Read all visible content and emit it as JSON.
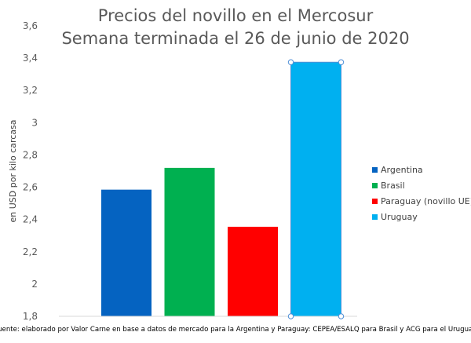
{
  "chart_data": {
    "type": "bar",
    "title": "Precios del novillo en el Mercosur",
    "subtitle": "Semana terminada el 26 de junio de 2020",
    "xlabel": "",
    "ylabel": "en USD por kilo carcasa",
    "ylim": [
      1.8,
      3.6
    ],
    "yticks": [
      1.8,
      2,
      2.2,
      2.4,
      2.6,
      2.8,
      3,
      3.2,
      3.4,
      3.6
    ],
    "ytick_labels": [
      "1,8",
      "2",
      "2,2",
      "2,4",
      "2,6",
      "2,8",
      "3",
      "3,2",
      "3,4",
      "3,6"
    ],
    "grid": false,
    "legend_position": "right",
    "series": [
      {
        "name": "Argentina",
        "value": 2.585,
        "color": "#0563C1"
      },
      {
        "name": "Brasil",
        "value": 2.72,
        "color": "#00B050"
      },
      {
        "name": "Paraguay (novillo UE)",
        "value": 2.355,
        "color": "#FF0000"
      },
      {
        "name": "Uruguay",
        "value": 3.375,
        "color": "#00B0F0"
      }
    ],
    "source": "Fuente: elaborado por Valor Carne en base a datos de mercado para la Argentina y Paraguay: CEPEA/ESALQ para Brasil y ACG para el Uruguay"
  }
}
